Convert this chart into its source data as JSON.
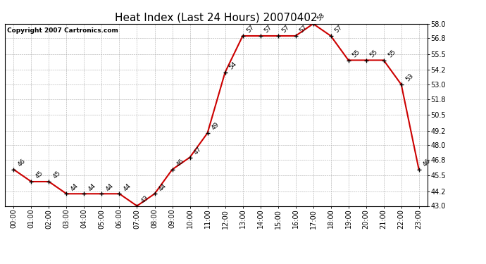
{
  "title": "Heat Index (Last 24 Hours) 20070402",
  "copyright": "Copyright 2007 Cartronics.com",
  "hours": [
    "00:00",
    "01:00",
    "02:00",
    "03:00",
    "04:00",
    "05:00",
    "06:00",
    "07:00",
    "08:00",
    "09:00",
    "10:00",
    "11:00",
    "12:00",
    "13:00",
    "14:00",
    "15:00",
    "16:00",
    "17:00",
    "18:00",
    "19:00",
    "20:00",
    "21:00",
    "22:00",
    "23:00"
  ],
  "values": [
    46,
    45,
    45,
    44,
    44,
    44,
    44,
    43,
    44,
    46,
    47,
    49,
    54,
    57,
    57,
    57,
    57,
    58,
    57,
    55,
    55,
    55,
    53,
    46
  ],
  "ylim": [
    43.0,
    58.0
  ],
  "yticks": [
    43.0,
    44.2,
    45.5,
    46.8,
    48.0,
    49.2,
    50.5,
    51.8,
    53.0,
    54.2,
    55.5,
    56.8,
    58.0
  ],
  "line_color": "#cc0000",
  "marker_color": "#000000",
  "bg_color": "#ffffff",
  "grid_color": "#aaaaaa",
  "title_fontsize": 11,
  "label_fontsize": 7,
  "annot_fontsize": 6.5,
  "copyright_fontsize": 6.5
}
